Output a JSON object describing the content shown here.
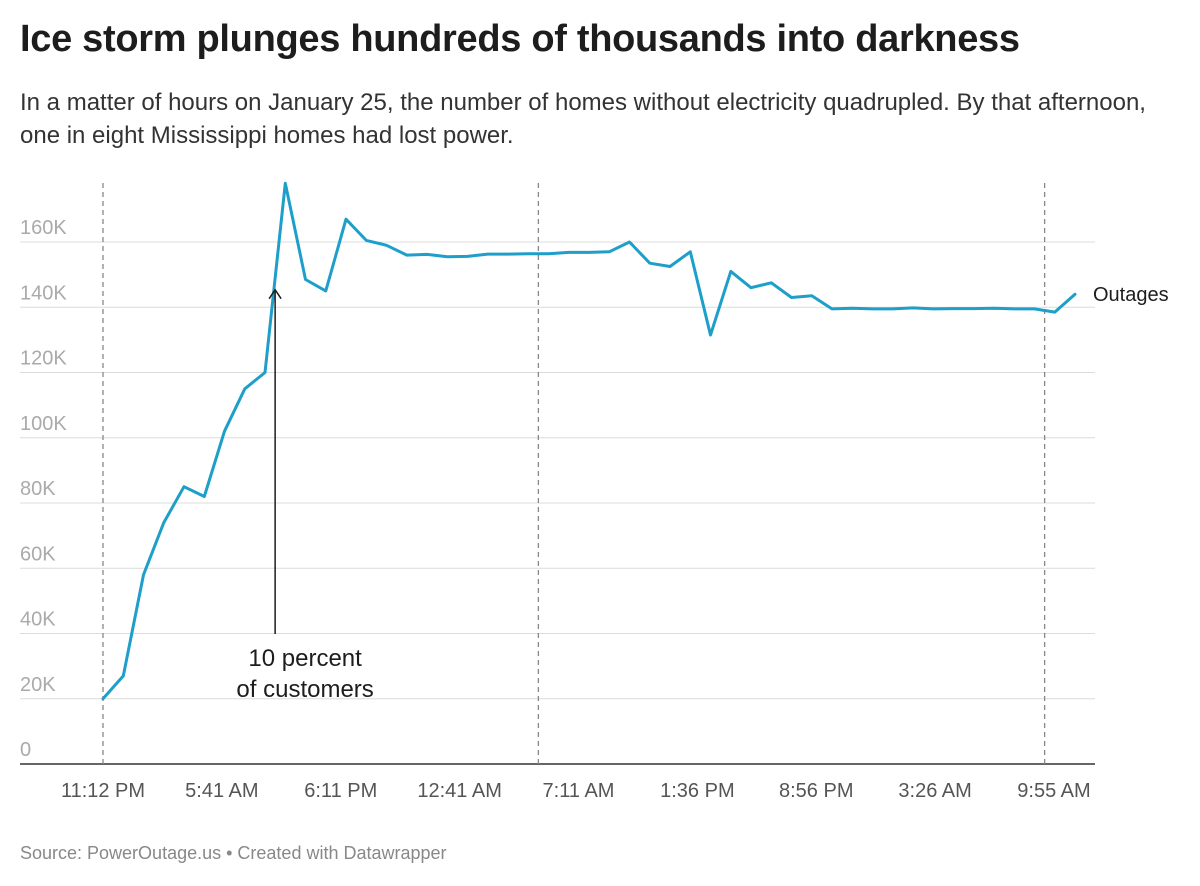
{
  "title": "Ice storm plunges hundreds of thousands into darkness",
  "subtitle": "In a matter of hours on January 25, the number of homes without electricity quadrupled. By that afternoon, one in eight Mississippi homes had lost power.",
  "source": "Source: PowerOutage.us • Created with Datawrapper",
  "colors": {
    "line": "#1d9fca",
    "grid": "#dcdcdc",
    "axis": "#333333",
    "tick_text": "#aaaaaa",
    "x_text": "#555555"
  },
  "chart_data": {
    "type": "line",
    "title": "Ice storm plunges hundreds of thousands into darkness",
    "xlabel": "",
    "ylabel": "",
    "ylim": [
      0,
      160000
    ],
    "x_ticks": [
      "11:12 PM",
      "5:41 AM",
      "6:11 PM",
      "12:41 AM",
      "7:11 AM",
      "1:36 PM",
      "8:56 PM",
      "3:26 AM",
      "9:55 AM"
    ],
    "y_ticks": [
      0,
      20000,
      40000,
      60000,
      80000,
      100000,
      120000,
      140000,
      160000
    ],
    "y_tick_labels": [
      "0",
      "20K",
      "40K",
      "60K",
      "80K",
      "100K",
      "120K",
      "140K",
      "160K"
    ],
    "series": [
      {
        "name": "Outages",
        "x": [
          0,
          0.2,
          0.4,
          0.6,
          0.8,
          1.0,
          1.2,
          1.4,
          1.6,
          1.8,
          2.0,
          2.2,
          2.4,
          2.6,
          2.8,
          3.0,
          3.2,
          3.4,
          3.6,
          3.8,
          4.0,
          4.2,
          4.4,
          4.6,
          4.8,
          5.0,
          5.2,
          5.4,
          5.6,
          5.8,
          6.0,
          6.2,
          6.4,
          6.6,
          6.8,
          7.0,
          7.2,
          7.4,
          7.6,
          7.8,
          8.0,
          8.2,
          8.4,
          8.6,
          8.8,
          9.0,
          9.2,
          9.4,
          9.6
        ],
        "values": [
          20000,
          27000,
          58000,
          74000,
          85000,
          82000,
          102000,
          115000,
          120000,
          178000,
          148500,
          145000,
          167000,
          160500,
          159000,
          156000,
          156200,
          155500,
          155600,
          156300,
          156300,
          156400,
          156400,
          156800,
          156800,
          157000,
          160000,
          153500,
          152500,
          157000,
          131500,
          151000,
          146000,
          147500,
          143000,
          143500,
          139500,
          139700,
          139500,
          139500,
          139800,
          139500,
          139600,
          139600,
          139700,
          139500,
          139500,
          138500,
          144000
        ]
      }
    ],
    "vertical_reference_lines_at_x": [
      0,
      4.3,
      9.3
    ],
    "annotations": [
      {
        "text_line1": "10 percent",
        "text_line2": "of customers",
        "x": 1.7,
        "y": 146000
      }
    ]
  }
}
